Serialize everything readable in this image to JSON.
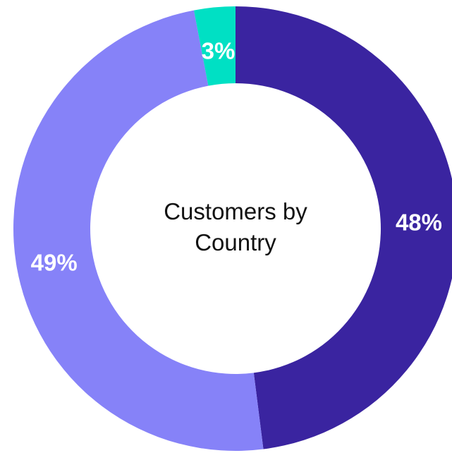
{
  "chart_data": {
    "type": "donut",
    "title": "Customers by Country",
    "values": [
      48,
      49,
      3
    ],
    "value_labels": [
      "48%",
      "49%",
      "3%"
    ],
    "colors": [
      "#3a24a0",
      "#8682f8",
      "#00e0c4"
    ]
  }
}
